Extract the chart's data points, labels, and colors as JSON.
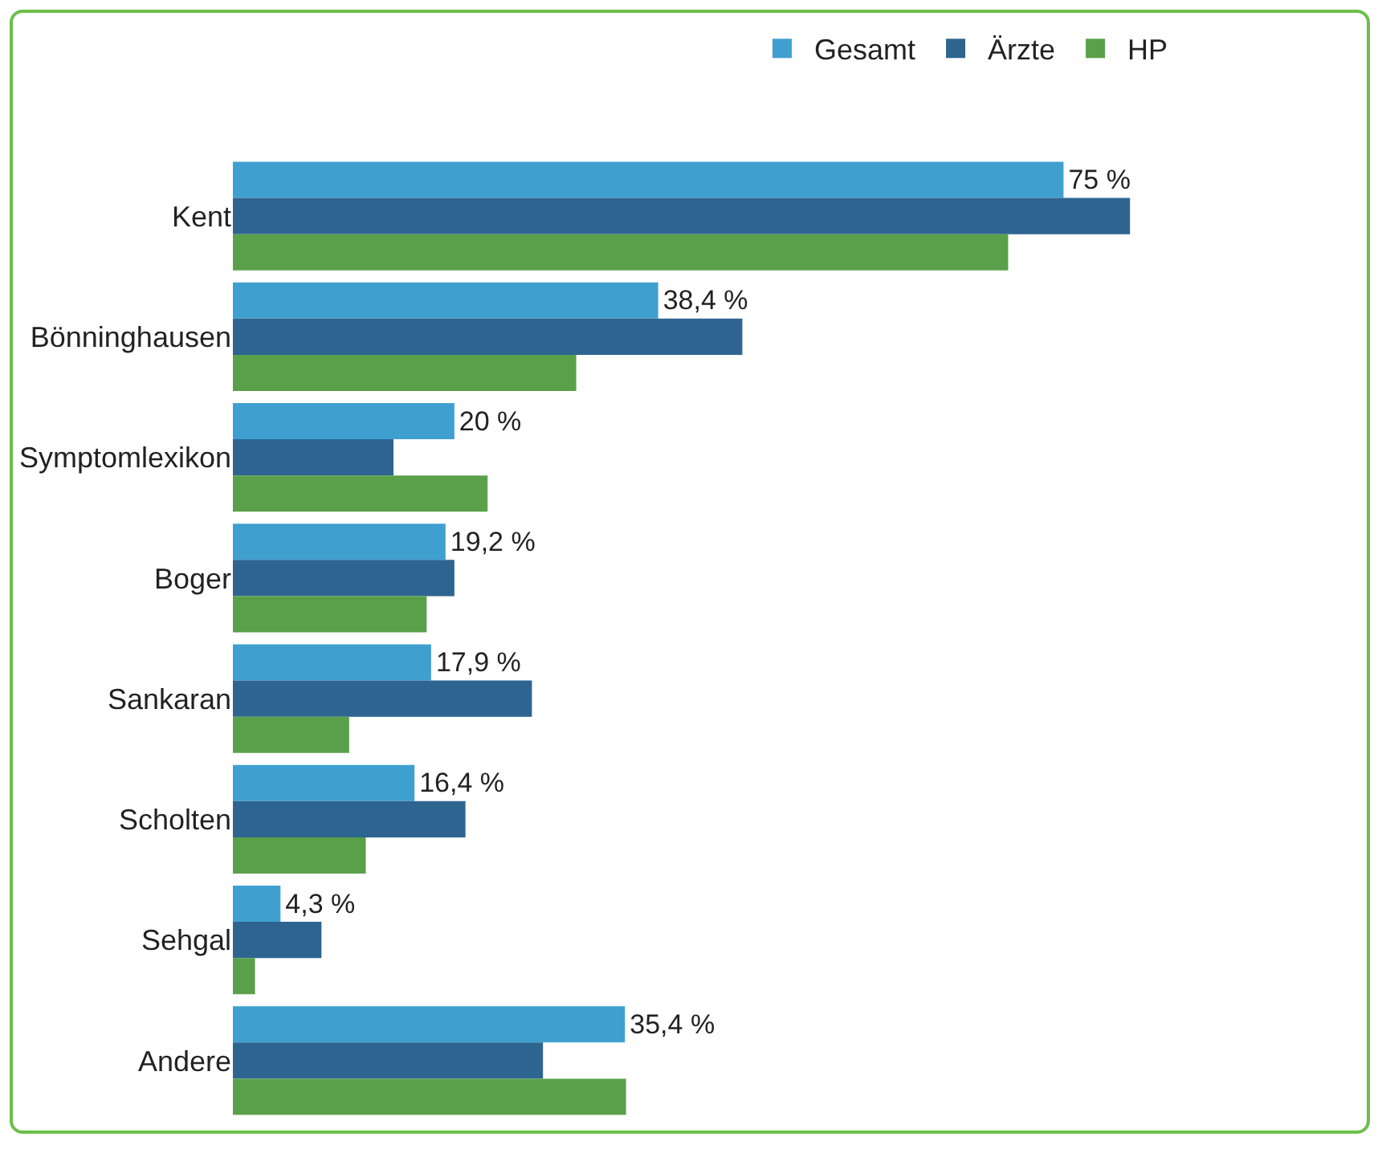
{
  "chart_data": {
    "type": "bar",
    "orientation": "horizontal",
    "legend": "top right",
    "grid": false,
    "tick_labels": "y",
    "categories": [
      "Kent",
      "Bönninghausen",
      "Symptomlexikon",
      "Boger",
      "Sankaran",
      "Scholten",
      "Sehgal",
      "Andere"
    ],
    "series": [
      {
        "name": "Gesamt",
        "color": "#3fa0d0",
        "values": [
          75,
          38.4,
          20,
          19.2,
          17.9,
          16.4,
          4.3,
          35.4
        ],
        "value_labels": [
          "75 %",
          "38,4 %",
          "20 %",
          "19,2 %",
          "17,9 %",
          "16,4 %",
          "4,3 %",
          "35,4 %"
        ]
      },
      {
        "name": "Ärzte",
        "color": "#2e6590",
        "values": [
          81,
          46,
          14.5,
          20,
          27,
          21,
          8,
          28
        ]
      },
      {
        "name": "HP",
        "color": "#5aa04a",
        "values": [
          70,
          31,
          23,
          17.5,
          10.5,
          12,
          2,
          35.5
        ]
      }
    ]
  }
}
